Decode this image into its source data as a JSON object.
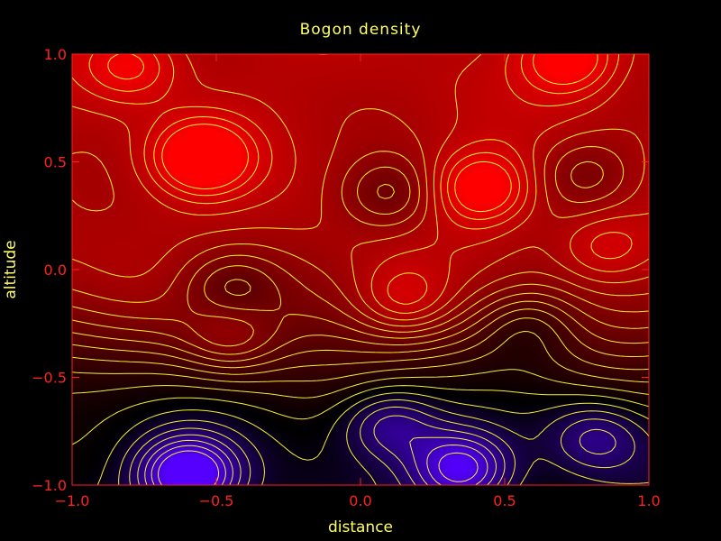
{
  "chart_data": {
    "type": "heatmap",
    "title": "Bogon density",
    "xlabel": "distance",
    "ylabel": "altitude",
    "xlim": [
      -1.0,
      1.0
    ],
    "ylim": [
      -1.0,
      1.0
    ],
    "x_ticks": [
      -1.0,
      -0.5,
      0.0,
      0.5,
      1.0
    ],
    "y_ticks": [
      -1.0,
      -0.5,
      0.0,
      0.5,
      1.0
    ],
    "x_tick_labels": [
      "−1.0",
      "−0.5",
      "0.0",
      "0.5",
      "1.0"
    ],
    "y_tick_labels": [
      "−1.0",
      "−0.5",
      "0.0",
      "0.5",
      "1.0"
    ],
    "colormap": {
      "low": "#5500ff",
      "mid": "#000000",
      "high": "#ff0000"
    },
    "grid": false,
    "contours": true,
    "peaks": [
      {
        "x": -0.55,
        "y": 0.52,
        "w": 1.0
      },
      {
        "x": 0.42,
        "y": 0.38,
        "w": 0.85
      },
      {
        "x": 0.72,
        "y": 0.98,
        "w": 0.8
      },
      {
        "x": -0.8,
        "y": 0.95,
        "w": 0.6
      },
      {
        "x": 0.15,
        "y": -0.15,
        "w": 0.55
      },
      {
        "x": -0.45,
        "y": -0.32,
        "w": 0.5
      },
      {
        "x": 0.85,
        "y": 0.1,
        "w": 0.45
      }
    ],
    "troughs": [
      {
        "x": 0.1,
        "y": 0.35,
        "w": 0.5
      },
      {
        "x": -0.45,
        "y": -0.08,
        "w": 0.45
      },
      {
        "x": 0.58,
        "y": -0.25,
        "w": 0.45
      },
      {
        "x": 0.78,
        "y": 0.45,
        "w": 0.4
      },
      {
        "x": -0.6,
        "y": -0.95,
        "w": 1.1
      },
      {
        "x": 0.35,
        "y": -0.92,
        "w": 0.9
      },
      {
        "x": 0.1,
        "y": -0.72,
        "w": 0.6
      },
      {
        "x": 0.82,
        "y": -0.78,
        "w": 0.5
      }
    ]
  },
  "colors": {
    "background": "#000000",
    "axes": "#ff2020",
    "text": "#ffff66",
    "contour": "#ffff33"
  }
}
